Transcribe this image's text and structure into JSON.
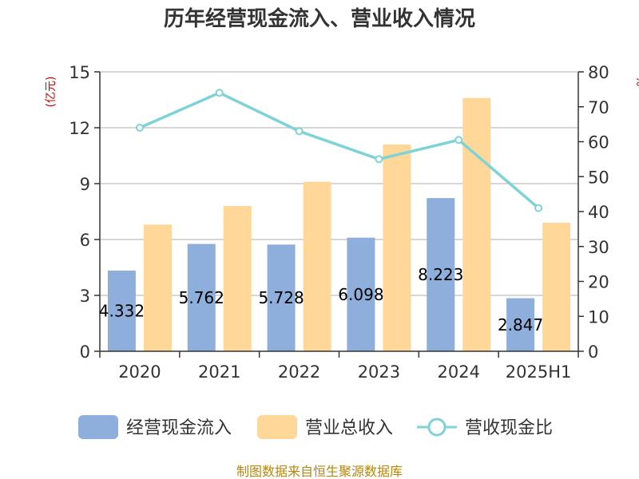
{
  "chart_data": {
    "type": "bar",
    "title": "历年经营现金流入、营业收入情况",
    "categories": [
      "2020",
      "2021",
      "2022",
      "2023",
      "2024",
      "2025H1"
    ],
    "left_axis": {
      "unit": "(亿元)",
      "ylim": [
        0,
        15
      ],
      "ticks": [
        "0",
        "3",
        "6",
        "9",
        "12",
        "15"
      ]
    },
    "right_axis": {
      "unit": "%",
      "ylim": [
        0,
        80
      ],
      "ticks": [
        "0",
        "10",
        "20",
        "30",
        "40",
        "50",
        "60",
        "70",
        "80"
      ]
    },
    "series": [
      {
        "name": "经营现金流入",
        "type": "bar",
        "axis": "left",
        "color": "#8eaedb",
        "values": [
          4.332,
          5.762,
          5.728,
          6.098,
          8.223,
          2.847
        ],
        "labels": [
          "4.332",
          "5.762",
          "5.728",
          "6.098",
          "8.223",
          "2.847"
        ]
      },
      {
        "name": "营业总收入",
        "type": "bar",
        "axis": "left",
        "color": "#ffd899",
        "values": [
          6.8,
          7.8,
          9.1,
          11.1,
          13.6,
          6.9
        ]
      },
      {
        "name": "营收现金比",
        "type": "line",
        "axis": "right",
        "color": "#7fd3d8",
        "values": [
          64,
          74,
          63,
          55,
          60.5,
          41
        ]
      }
    ],
    "grid": true,
    "legend": "bottom"
  },
  "source": "制图数据来自恒生聚源数据库"
}
